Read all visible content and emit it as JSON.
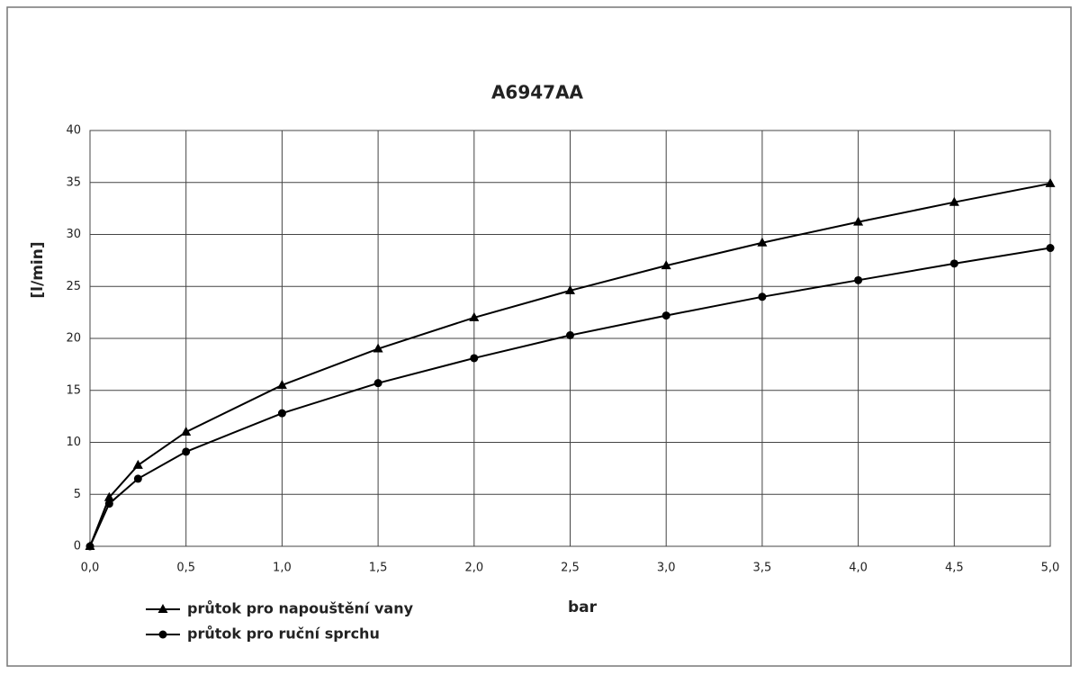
{
  "chart_data": {
    "type": "line",
    "title": "A6947AA",
    "x_label": "bar",
    "y_label": "[l/min]",
    "x": [
      0,
      0.1,
      0.25,
      0.5,
      1,
      1.5,
      2,
      2.5,
      3,
      3.5,
      4,
      4.5,
      5
    ],
    "series": [
      {
        "name": "průtok pro napouštění vany",
        "color": "#000000",
        "marker": "triangle",
        "values": [
          0,
          4.7,
          7.8,
          11,
          15.5,
          19,
          22,
          24.6,
          27,
          29.2,
          31.2,
          33.1,
          34.9
        ]
      },
      {
        "name": "průtok pro ruční sprchu",
        "color": "#000000",
        "marker": "circle",
        "values": [
          0,
          4.1,
          6.5,
          9.1,
          12.8,
          15.7,
          18.1,
          20.3,
          22.2,
          24,
          25.6,
          27.2,
          28.7
        ]
      }
    ],
    "xlim": [
      0,
      5
    ],
    "xticks": [
      {
        "value": 0,
        "label": "0,0"
      },
      {
        "value": 0.5,
        "label": "0,5"
      },
      {
        "value": 1,
        "label": "1,0"
      },
      {
        "value": 1.5,
        "label": "1,5"
      },
      {
        "value": 2,
        "label": "2,0"
      },
      {
        "value": 2.5,
        "label": "2,5"
      },
      {
        "value": 3,
        "label": "3,0"
      },
      {
        "value": 3.5,
        "label": "3,5"
      },
      {
        "value": 4,
        "label": "4,0"
      },
      {
        "value": 4.5,
        "label": "4,5"
      },
      {
        "value": 5,
        "label": "5,0"
      }
    ],
    "ylim": [
      0,
      40
    ],
    "yticks": [
      0,
      5,
      10,
      15,
      20,
      25,
      30,
      35,
      40
    ],
    "grid": true,
    "legend": "bottom-left"
  }
}
